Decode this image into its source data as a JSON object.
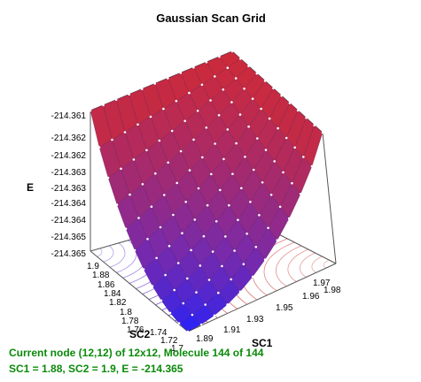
{
  "chart_data": {
    "type": "surface",
    "title": "Gaussian Scan Grid",
    "xlabel": "SC1",
    "ylabel": "SC2",
    "zlabel": "E",
    "x_ticks": [
      "1.89",
      "1.91",
      "1.93",
      "1.95",
      "1.96",
      "1.97",
      "1.98"
    ],
    "y_ticks": [
      "1.9",
      "1.88",
      "1.86",
      "1.84",
      "1.82",
      "1.8",
      "1.78",
      "1.76",
      "1.74",
      "1.72",
      "1.7"
    ],
    "z_ticks": [
      "-214.361",
      "-214.362",
      "-214.362",
      "-214.363",
      "-214.363",
      "-214.364",
      "-214.364",
      "-214.365",
      "-214.365"
    ],
    "grid_size": [
      12,
      12
    ],
    "zlim": [
      -214.365,
      -214.361
    ],
    "colors": {
      "high": "#cc2a3a",
      "mid": "#7a2aa8",
      "low": "#2222ff",
      "contour": [
        "#cc3333",
        "#5522cc"
      ],
      "nodes": "#ffffff"
    }
  },
  "status": {
    "line1": "Current node (12,12) of 12x12, Molecule 144 of 144",
    "line2": "SC1 = 1.88, SC2 = 1.9, E = -214.365"
  }
}
